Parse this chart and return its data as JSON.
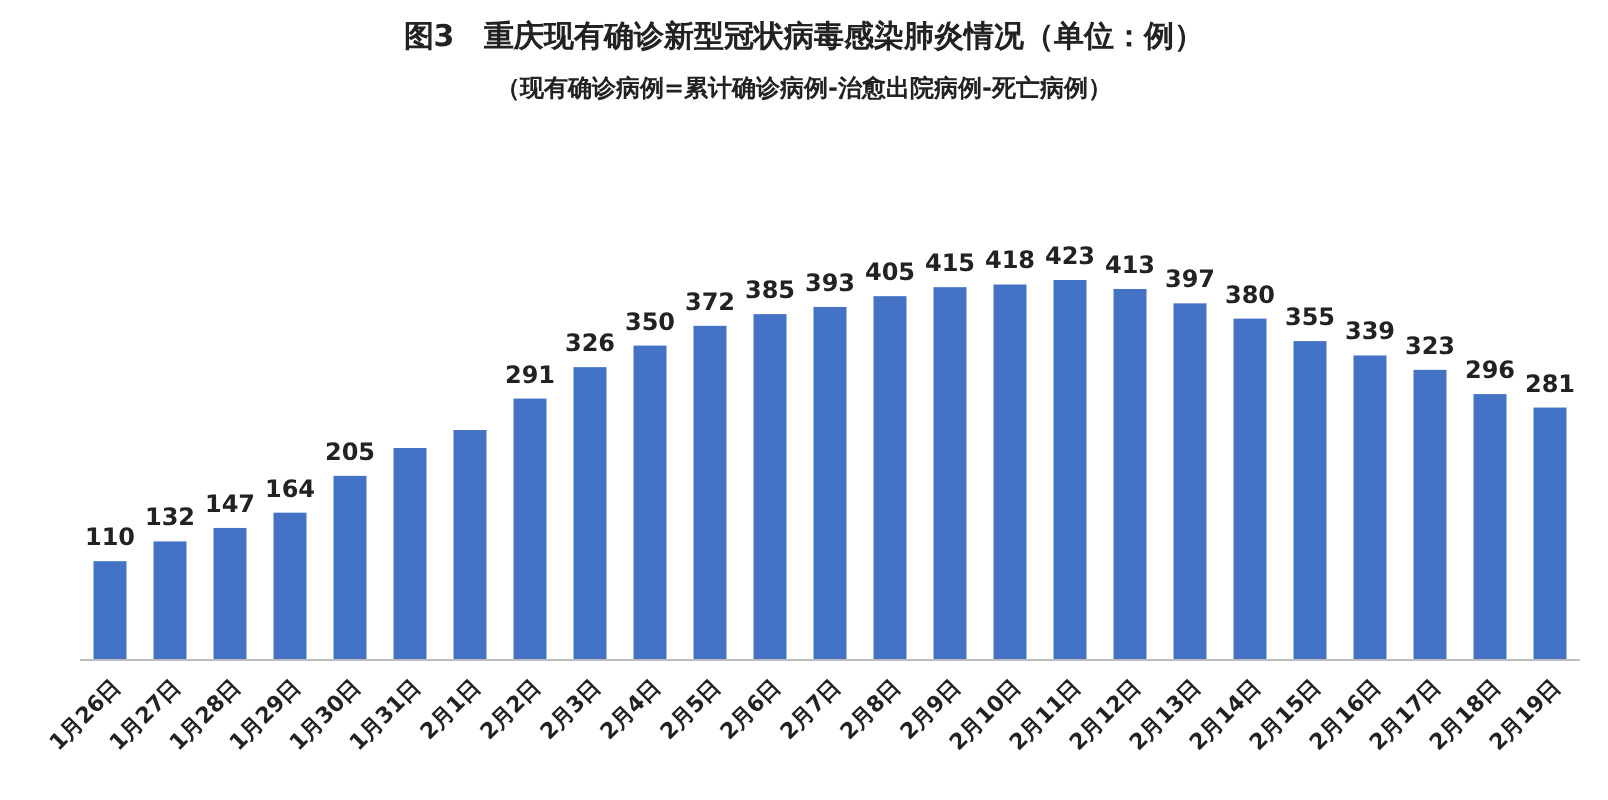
{
  "chart_data": {
    "type": "bar",
    "title": "图3　重庆现有确诊新型冠状病毒感染肺炎情况（单位：例）",
    "subtitle": "（现有确诊病例=累计确诊病例-治愈出院病例-死亡病例）",
    "categories": [
      "1月26日",
      "1月27日",
      "1月28日",
      "1月29日",
      "1月30日",
      "1月31日",
      "2月1日",
      "2月2日",
      "2月3日",
      "2月4日",
      "2月5日",
      "2月6日",
      "2月7日",
      "2月8日",
      "2月9日",
      "2月10日",
      "2月11日",
      "2月12日",
      "2月13日",
      "2月14日",
      "2月15日",
      "2月16日",
      "2月17日",
      "2月18日",
      "2月19日"
    ],
    "values": [
      110,
      132,
      147,
      164,
      205,
      236,
      256,
      291,
      326,
      350,
      372,
      385,
      393,
      405,
      415,
      418,
      423,
      413,
      397,
      380,
      355,
      339,
      323,
      296,
      281
    ],
    "value_labels": [
      "110",
      "132",
      "147",
      "164",
      "205",
      null,
      null,
      "291",
      "326",
      "350",
      "372",
      "385",
      "393",
      "405",
      "415",
      "418",
      "423",
      "413",
      "397",
      "380",
      "355",
      "339",
      "323",
      "296",
      "281"
    ],
    "color": "#4472c4"
  }
}
